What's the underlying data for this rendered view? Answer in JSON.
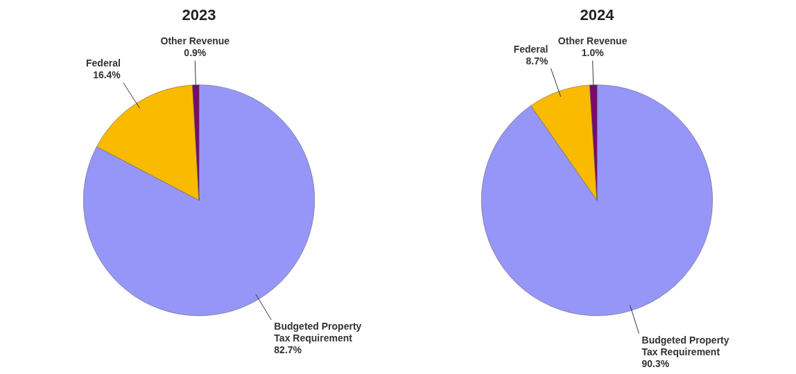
{
  "chart_data": [
    {
      "type": "pie",
      "title": "2023",
      "categories": [
        "Budgeted Property Tax Requirement",
        "Federal",
        "Other Revenue"
      ],
      "values": [
        82.7,
        16.4,
        0.9
      ],
      "value_labels": [
        "82.7%",
        "16.4%",
        "0.9%"
      ],
      "colors": [
        "#9696f8",
        "#f9ba00",
        "#7a0a6e"
      ],
      "legend": false
    },
    {
      "type": "pie",
      "title": "2024",
      "categories": [
        "Budgeted Property Tax Requirement",
        "Federal",
        "Other Revenue"
      ],
      "values": [
        90.3,
        8.7,
        1.0
      ],
      "value_labels": [
        "90.3%",
        "8.7%",
        "1.0%"
      ],
      "colors": [
        "#9696f8",
        "#f9ba00",
        "#7a0a6e"
      ],
      "legend": false
    }
  ]
}
